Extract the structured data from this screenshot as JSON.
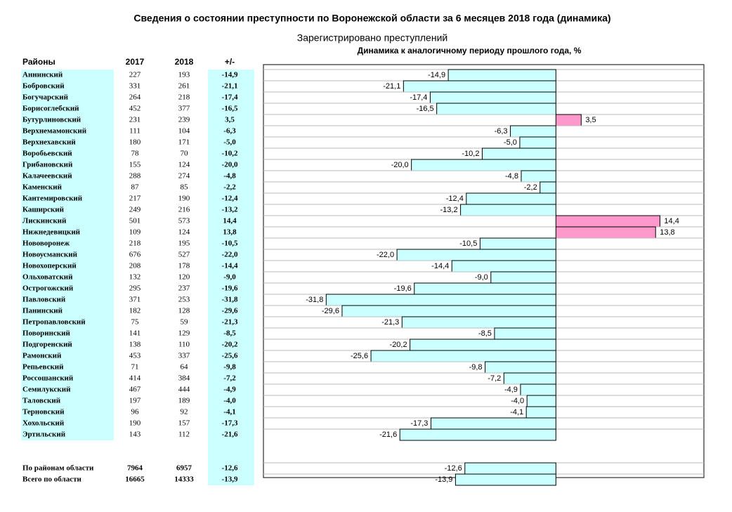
{
  "title": "Сведения о состоянии преступности по Воронежской области  за 6 месяцев 2018 года (динамика)",
  "subtitle": "Зарегистрировано преступлений",
  "table": {
    "headers": [
      "Районы",
      "2017",
      "2018",
      "+/-"
    ],
    "y2017": [
      227,
      331,
      264,
      452,
      231,
      111,
      180,
      78,
      155,
      288,
      87,
      217,
      249,
      501,
      109,
      218,
      676,
      208,
      132,
      295,
      371,
      182,
      75,
      141,
      138,
      453,
      71,
      414,
      467,
      197,
      96,
      190,
      143,
      7964,
      16665
    ],
    "y2018": [
      193,
      261,
      218,
      377,
      239,
      104,
      171,
      70,
      124,
      274,
      85,
      190,
      216,
      573,
      124,
      195,
      527,
      178,
      120,
      237,
      253,
      128,
      59,
      129,
      110,
      337,
      64,
      384,
      444,
      189,
      92,
      157,
      112,
      6957,
      14333
    ]
  },
  "chart_data": {
    "type": "bar",
    "orientation": "horizontal",
    "title": "Динамика к аналогичному периоду прошлого года, %",
    "categories": [
      "Аннинский",
      "Бобровский",
      "Богучарский",
      "Борисоглебский",
      "Бутурлиновский",
      "Верхнемамонский",
      "Верхнехавский",
      "Воробьевский",
      "Грибановский",
      "Калачеевский",
      "Каменский",
      "Кантемировский",
      "Каширский",
      "Лискинский",
      "Нижнедевицкий",
      "Нововоронеж",
      "Новоусманский",
      "Новохоперский",
      "Ольховатский",
      "Острогожский",
      "Павловский",
      "Панинский",
      "Петропавловский",
      "Поворинский",
      "Подгоренский",
      "Рамонский",
      "Репьевский",
      "Россошанский",
      "Семилукский",
      "Таловский",
      "Терновский",
      "Хохольский",
      "Эртильский",
      "По районам области",
      "Всего по области"
    ],
    "values": [
      -14.9,
      -21.1,
      -17.4,
      -16.5,
      3.5,
      -6.3,
      -5.0,
      -10.2,
      -20.0,
      -4.8,
      -2.2,
      -12.4,
      -13.2,
      14.4,
      13.8,
      -10.5,
      -22.0,
      -14.4,
      -9.0,
      -19.6,
      -31.8,
      -29.6,
      -21.3,
      -8.5,
      -20.2,
      -25.6,
      -9.8,
      -7.2,
      -4.9,
      -4.0,
      -4.1,
      -17.3,
      -21.6,
      -12.6,
      -13.9
    ],
    "value_labels": [
      "-14,9",
      "-21,1",
      "-17,4",
      "-16,5",
      "3,5",
      "-6,3",
      "-5,0",
      "-10,2",
      "-20,0",
      "-4,8",
      "-2,2",
      "-12,4",
      "-13,2",
      "14,4",
      "13,8",
      "-10,5",
      "-22,0",
      "-14,4",
      "-9,0",
      "-19,6",
      "-31,8",
      "-29,6",
      "-21,3",
      "-8,5",
      "-20,2",
      "-25,6",
      "-9,8",
      "-7,2",
      "-4,9",
      "-4,0",
      "-4,1",
      "-17,3",
      "-21,6",
      "-12,6",
      "-13,9"
    ],
    "negative_color": "#ccffff",
    "positive_color": "#ff99cc",
    "xlim": [
      -40,
      20
    ],
    "grid": true
  }
}
